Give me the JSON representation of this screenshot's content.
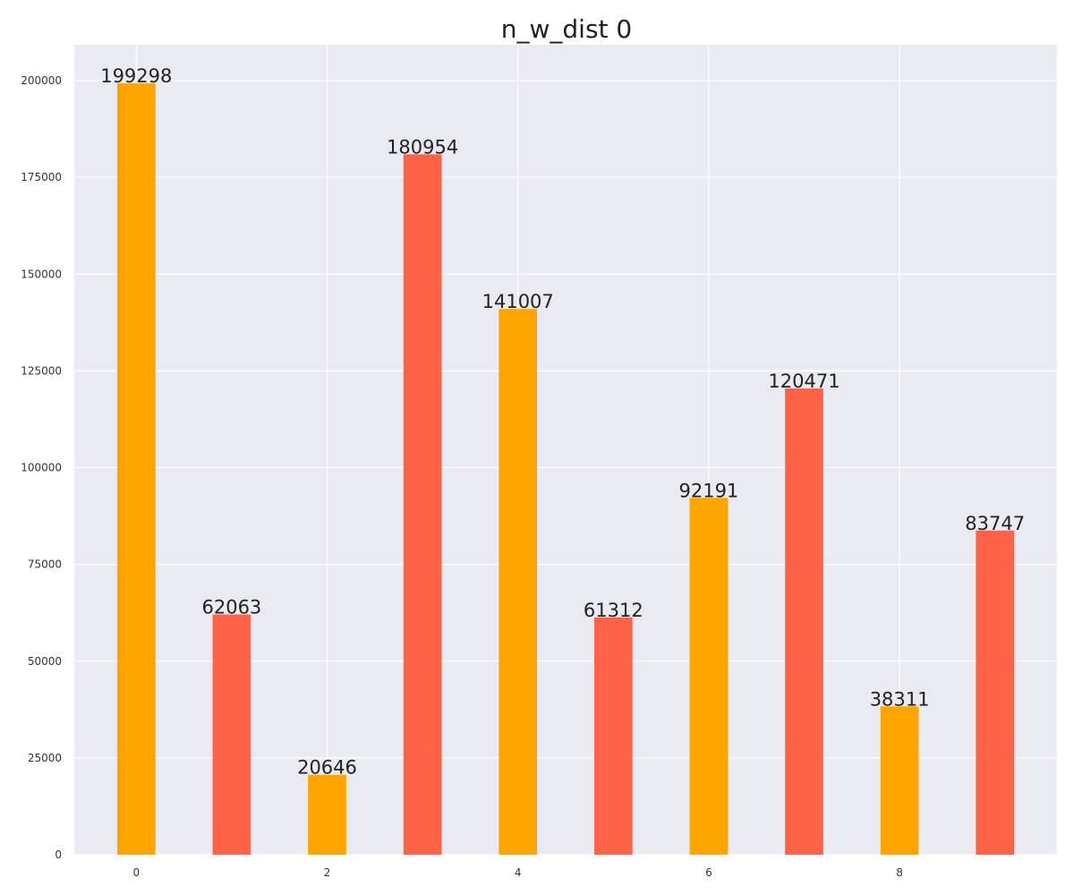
{
  "chart_data": {
    "type": "bar",
    "title": "n_w_dist 0",
    "xlabel": "",
    "ylabel": "",
    "x": [
      0,
      1,
      2,
      3,
      4,
      5,
      6,
      7,
      8,
      9
    ],
    "values": [
      199298,
      62063,
      20646,
      180954,
      141007,
      61312,
      92191,
      120471,
      38311,
      83747
    ],
    "data_labels": [
      "199298",
      "62063",
      "20646",
      "180954",
      "141007",
      "61312",
      "92191",
      "120471",
      "38311",
      "83747"
    ],
    "bar_colors": [
      "#FFA500",
      "#FF6347",
      "#FFA500",
      "#FF6347",
      "#FFA500",
      "#FF6347",
      "#FFA500",
      "#FF6347",
      "#FFA500",
      "#FF6347"
    ],
    "xlim": [
      -0.65,
      9.65
    ],
    "ylim": [
      0,
      209263
    ],
    "x_ticks": [
      0,
      2,
      4,
      6,
      8
    ],
    "x_tick_labels": [
      "0",
      "2",
      "4",
      "6",
      "8"
    ],
    "y_ticks": [
      0,
      25000,
      50000,
      75000,
      100000,
      125000,
      150000,
      175000,
      200000
    ],
    "y_tick_labels": [
      "0",
      "25000",
      "50000",
      "75000",
      "100000",
      "125000",
      "150000",
      "175000",
      "200000"
    ],
    "grid": true,
    "legend": "none",
    "background_color": "#EAEAF2",
    "grid_color": "#FFFFFF"
  }
}
